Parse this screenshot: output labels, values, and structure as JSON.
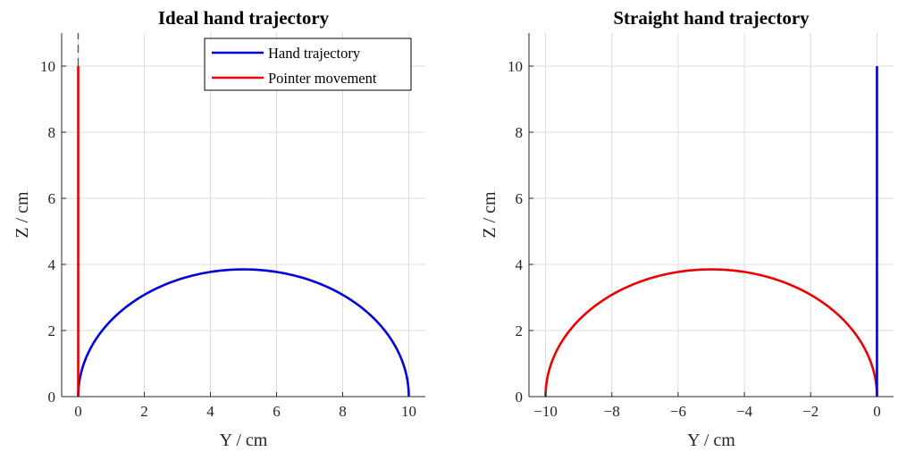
{
  "chart_data": [
    {
      "type": "line",
      "title": "Ideal hand trajectory",
      "xlabel": "Y / cm",
      "ylabel": "Z / cm",
      "xlim": [
        -0.5,
        10.5
      ],
      "ylim": [
        0,
        11
      ],
      "xticks": [
        0,
        2,
        4,
        6,
        8,
        10
      ],
      "yticks": [
        0,
        2,
        4,
        6,
        8,
        10
      ],
      "grid": true,
      "legend": "top-right",
      "series": [
        {
          "name": "Hand trajectory",
          "color": "#0000dd",
          "shape": "semi-ellipse",
          "center_x": 5.45,
          "x_start": 0,
          "x_end": 10,
          "peak": 3.85
        },
        {
          "name": "Pointer movement",
          "color": "#ee0000",
          "shape": "vertical-segment",
          "x": 0,
          "y_from": 0,
          "y_to": 10
        },
        {
          "color": "#555555",
          "shape": "dashed-segment",
          "x": 0,
          "y_from": 10,
          "y_to": 11
        }
      ]
    },
    {
      "type": "line",
      "title": "Straight hand trajectory",
      "xlabel": "Y / cm",
      "ylabel": "Z / cm",
      "xlim": [
        -10.5,
        0.5
      ],
      "ylim": [
        0,
        11
      ],
      "xticks": [
        -10,
        -8,
        -6,
        -4,
        -2,
        0
      ],
      "xtick_labels": [
        "−10",
        "−8",
        "−6",
        "−4",
        "−2",
        "0"
      ],
      "yticks": [
        0,
        2,
        4,
        6,
        8,
        10
      ],
      "grid": true,
      "series": [
        {
          "color": "#ee0000",
          "shape": "semi-ellipse",
          "center_x": -5.45,
          "x_start": -10,
          "x_end": 0,
          "peak": 3.85
        },
        {
          "color": "#0000dd",
          "shape": "vertical-segment",
          "x": 0,
          "y_from": 0,
          "y_to": 10
        }
      ]
    }
  ]
}
